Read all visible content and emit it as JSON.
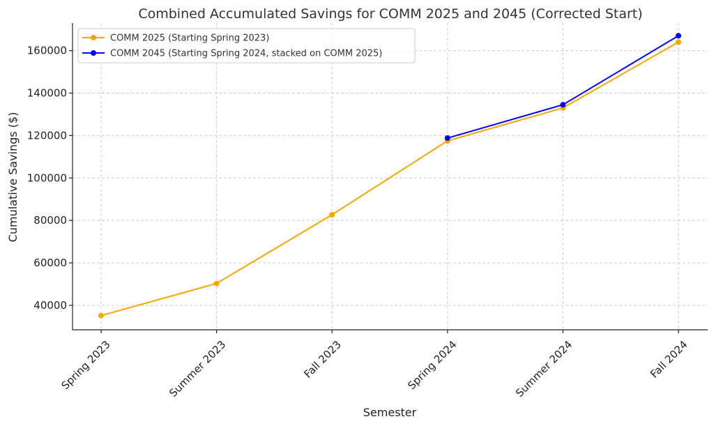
{
  "chart_data": {
    "type": "line",
    "title": "Combined Accumulated Savings for COMM 2025 and 2045 (Corrected Start)",
    "xlabel": "Semester",
    "ylabel": "Cumulative Savings ($)",
    "categories": [
      "Spring 2023",
      "Summer 2023",
      "Fall 2023",
      "Spring 2024",
      "Summer 2024",
      "Fall 2024"
    ],
    "ylim": [
      28500,
      173000
    ],
    "yticks": [
      40000,
      60000,
      80000,
      100000,
      120000,
      140000,
      160000
    ],
    "grid": true,
    "legend_position": "top-left",
    "series": [
      {
        "name": "COMM 2025 (Starting Spring 2023)",
        "color": "#FFA500",
        "values": [
          35200,
          50300,
          82700,
          117500,
          133000,
          164000
        ]
      },
      {
        "name": "COMM 2045 (Starting Spring 2024, stacked on COMM 2025)",
        "color": "#0000FF",
        "values": [
          null,
          null,
          null,
          118800,
          134500,
          167000
        ]
      }
    ]
  }
}
